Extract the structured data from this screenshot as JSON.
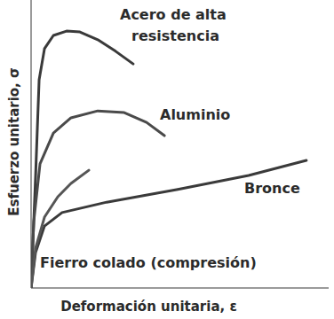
{
  "chart_data": {
    "type": "line",
    "x_label": "Deformación unitaria, ε",
    "y_label": "Esfuerzo unitario, σ",
    "xlim": [
      0,
      100
    ],
    "ylim": [
      0,
      100
    ],
    "tick_labels": false,
    "grid": false,
    "series": [
      {
        "name": "Acero de alta resistencia",
        "color": "#3a3a3a",
        "x": [
          0,
          1.5,
          2.7,
          4.5,
          7.5,
          11.9,
          16.4,
          22.4,
          28.4,
          34.3
        ],
        "values": [
          0,
          38.5,
          72.3,
          83.1,
          87.7,
          89.2,
          88.9,
          86.2,
          82.2,
          77.8
        ]
      },
      {
        "name": "Aluminio",
        "color": "#4a4a4a",
        "x": [
          0,
          0.9,
          3.0,
          7.5,
          13.4,
          22.4,
          31.3,
          38.8,
          44.8
        ],
        "values": [
          0,
          23.1,
          43.1,
          53.8,
          59.1,
          61.5,
          60.9,
          57.5,
          52.9
        ]
      },
      {
        "name": "Bronce",
        "color": "#3a3a3a",
        "x": [
          0,
          1.5,
          4.5,
          10.4,
          25.4,
          49.3,
          73.1,
          92.5
        ],
        "values": [
          0,
          12.3,
          21.5,
          26.2,
          29.8,
          34.2,
          39.1,
          44.3
        ]
      },
      {
        "name": "Fierro colado (compresión)",
        "color": "#555555",
        "x": [
          0,
          1.5,
          4.5,
          9.0,
          13.4,
          19.4
        ],
        "values": [
          0,
          13.8,
          24.6,
          31.7,
          36.3,
          40.9
        ]
      }
    ]
  }
}
